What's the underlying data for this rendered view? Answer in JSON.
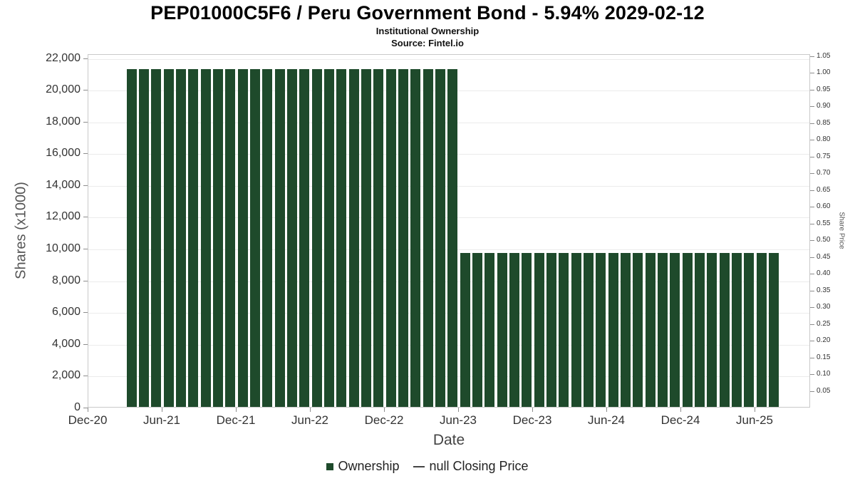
{
  "header": {
    "title": "PEP01000C5F6 / Peru Government Bond - 5.94% 2029-02-12",
    "subtitle": "Institutional Ownership",
    "source": "Source: Fintel.io"
  },
  "chart_data": {
    "type": "bar",
    "title": "PEP01000C5F6 / Peru Government Bond - 5.94% 2029-02-12",
    "subtitle": "Institutional Ownership",
    "source": "Source: Fintel.io",
    "xlabel": "Date",
    "ylabel_left": "Shares (x1000)",
    "ylabel_right": "Share Price",
    "bar_color": "#1e4a2b",
    "grid": true,
    "legend_position": "bottom",
    "axis_left": {
      "ticks": [
        0,
        2000,
        4000,
        6000,
        8000,
        10000,
        12000,
        14000,
        16000,
        18000,
        20000,
        22000
      ],
      "ylim": [
        0,
        22250
      ]
    },
    "axis_right": {
      "ticks": [
        0.05,
        0.1,
        0.15,
        0.2,
        0.25,
        0.3,
        0.35,
        0.4,
        0.45,
        0.5,
        0.55,
        0.6,
        0.65,
        0.7,
        0.75,
        0.8,
        0.85,
        0.9,
        0.95,
        1.0,
        1.05
      ],
      "ylim": [
        0,
        1.0555
      ]
    },
    "x_axis": {
      "domain_months": 58.5,
      "ticks": [
        {
          "label": "Dec-20",
          "month": 0
        },
        {
          "label": "Jun-21",
          "month": 6
        },
        {
          "label": "Dec-21",
          "month": 12
        },
        {
          "label": "Jun-22",
          "month": 18
        },
        {
          "label": "Dec-22",
          "month": 24
        },
        {
          "label": "Jun-23",
          "month": 30
        },
        {
          "label": "Dec-23",
          "month": 36
        },
        {
          "label": "Jun-24",
          "month": 42
        },
        {
          "label": "Dec-24",
          "month": 48
        },
        {
          "label": "Jun-25",
          "month": 54
        }
      ]
    },
    "series": [
      {
        "name": "Ownership",
        "start_month_index": 3,
        "months": [
          "Mar-21",
          "Apr-21",
          "May-21",
          "Jun-21",
          "Jul-21",
          "Aug-21",
          "Sep-21",
          "Oct-21",
          "Nov-21",
          "Dec-21",
          "Jan-22",
          "Feb-22",
          "Mar-22",
          "Apr-22",
          "May-22",
          "Jun-22",
          "Jul-22",
          "Aug-22",
          "Sep-22",
          "Oct-22",
          "Nov-22",
          "Dec-22",
          "Jan-23",
          "Feb-23",
          "Mar-23",
          "Apr-23",
          "May-23",
          "Jun-23",
          "Jul-23",
          "Aug-23",
          "Sep-23",
          "Oct-23",
          "Nov-23",
          "Dec-23",
          "Jan-24",
          "Feb-24",
          "Mar-24",
          "Apr-24",
          "May-24",
          "Jun-24",
          "Jul-24",
          "Aug-24",
          "Sep-24",
          "Oct-24",
          "Nov-24",
          "Dec-24",
          "Jan-25",
          "Feb-25",
          "Mar-25",
          "Apr-25",
          "May-25",
          "Jun-25",
          "Jul-25"
        ],
        "values": [
          21250,
          21250,
          21250,
          21250,
          21250,
          21250,
          21250,
          21250,
          21250,
          21250,
          21250,
          21250,
          21250,
          21250,
          21250,
          21250,
          21250,
          21250,
          21250,
          21250,
          21250,
          21250,
          21250,
          21250,
          21250,
          21250,
          21250,
          9700,
          9700,
          9700,
          9700,
          9700,
          9700,
          9700,
          9700,
          9700,
          9700,
          9700,
          9700,
          9700,
          9700,
          9700,
          9700,
          9700,
          9700,
          9700,
          9700,
          9700,
          9700,
          9700,
          9700,
          9700,
          9700
        ]
      }
    ],
    "legend": [
      {
        "label": "Ownership",
        "marker": "square",
        "color": "#1e4a2b"
      },
      {
        "label": "null Closing Price",
        "marker": "line",
        "color": "#444444"
      }
    ]
  }
}
